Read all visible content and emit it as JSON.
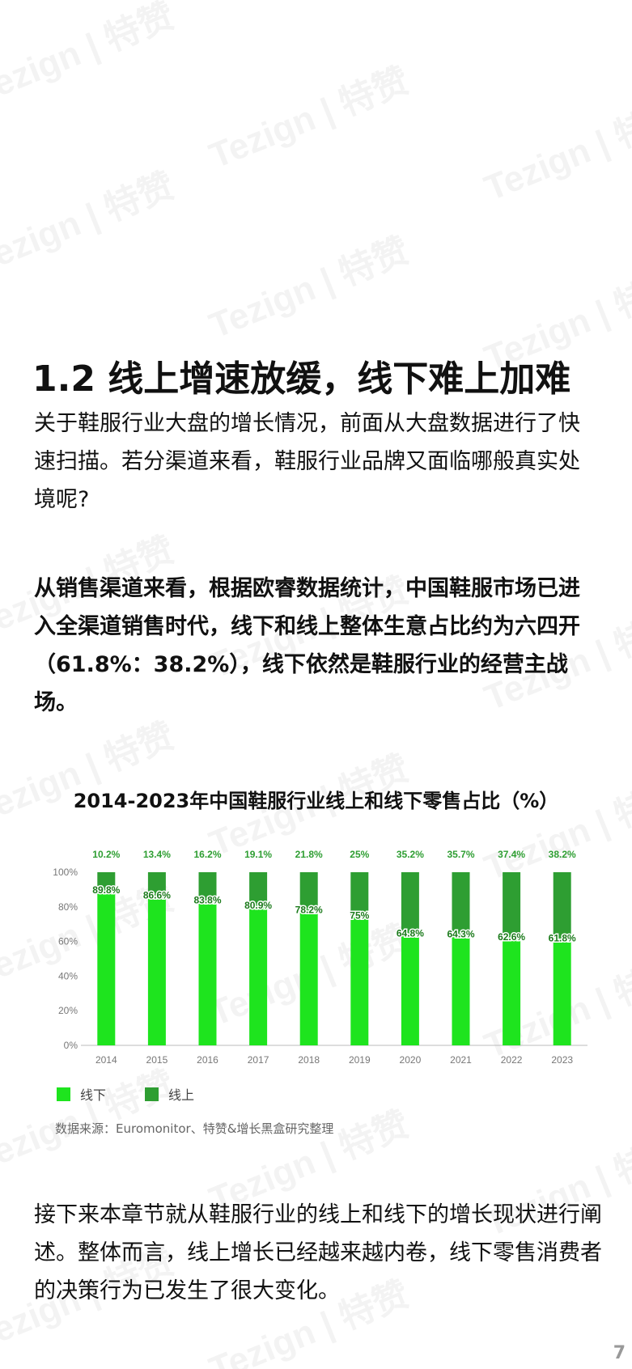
{
  "section": {
    "title": "1.2 线上增速放缓，线下难上加难"
  },
  "paragraphs": {
    "intro": "关于鞋服行业大盘的增长情况，前面从大盘数据进行了快速扫描。若分渠道来看，鞋服行业品牌又面临哪般真实处境呢?",
    "highlight": "从销售渠道来看，根据欧睿数据统计，中国鞋服市场已进入全渠道销售时代，线下和线上整体生意占比约为六四开（61.8%：38.2%），线下依然是鞋服行业的经营主战场。",
    "closing": "接下来本章节就从鞋服行业的线上和线下的增长现状进行阐述。整体而言，线上增长已经越来越内卷，线下零售消费者的决策行为已发生了很大变化。"
  },
  "chart_data": {
    "type": "bar",
    "stacked": true,
    "title": "2014-2023年中国鞋服行业线上和线下零售占比（%）",
    "categories": [
      "2014",
      "2015",
      "2016",
      "2017",
      "2018",
      "2019",
      "2020",
      "2021",
      "2022",
      "2023"
    ],
    "series": [
      {
        "name": "线下",
        "values": [
          89.8,
          86.6,
          83.8,
          80.9,
          78.2,
          75,
          64.8,
          64.3,
          62.6,
          61.8
        ],
        "labels": [
          "89.8%",
          "86.6%",
          "83.8%",
          "80.9%",
          "78.2%",
          "75%",
          "64.8%",
          "64.3%",
          "62.6%",
          "61.8%"
        ],
        "color": "#1ee41e"
      },
      {
        "name": "线上",
        "values": [
          10.2,
          13.4,
          16.2,
          19.1,
          21.8,
          25,
          35.2,
          35.7,
          37.4,
          38.2
        ],
        "labels": [
          "10.2%",
          "13.4%",
          "16.2%",
          "19.1%",
          "21.8%",
          "25%",
          "35.2%",
          "35.7%",
          "37.4%",
          "38.2%"
        ],
        "color": "#2e9e32"
      }
    ],
    "yticks": [
      "0%",
      "20%",
      "40%",
      "60%",
      "80%",
      "100%"
    ],
    "ylim": [
      0,
      100
    ],
    "top_label_color": "#2e9e32",
    "legend_position": "bottom-left",
    "source": "数据来源：Euromonitor、特赞&增长黑盒研究整理"
  },
  "watermark": {
    "text": "Tezign | 特赞"
  },
  "page_number": "7"
}
